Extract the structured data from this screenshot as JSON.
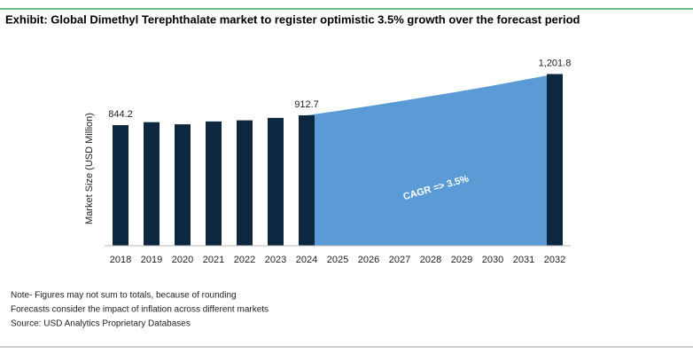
{
  "chart_data": {
    "type": "bar",
    "title": "Exhibit: Global Dimethyl Terephthalate market to register optimistic 3.5% growth over the forecast period",
    "y_label": "Market Size (USD Million)",
    "categories": [
      "2018",
      "2019",
      "2020",
      "2021",
      "2022",
      "2023",
      "2024",
      "2025",
      "2026",
      "2027",
      "2028",
      "2029",
      "2030",
      "2031",
      "2032"
    ],
    "series": [
      {
        "type": "bar",
        "color": "#0d2740",
        "values": [
          844.2,
          865,
          850,
          870,
          878,
          895,
          912.7,
          null,
          null,
          null,
          null,
          null,
          null,
          null,
          1201.8
        ],
        "value_labels": [
          "844.2",
          null,
          null,
          null,
          null,
          null,
          "912.7",
          null,
          null,
          null,
          null,
          null,
          null,
          null,
          "1,201.8"
        ]
      },
      {
        "type": "area",
        "color": "#5b9bd5",
        "values": [
          null,
          null,
          null,
          null,
          null,
          null,
          912.7,
          944,
          977,
          1011,
          1047,
          1083,
          1121,
          1161,
          1201.8
        ]
      }
    ],
    "annotation": "CAGR =>  3.5%",
    "ylim": [
      0,
      1720
    ],
    "notes": [
      "Note- Figures may not sum to totals, because of rounding",
      "Forecasts consider the impact of inflation across different markets",
      "Source: USD Analytics Proprietary Databases"
    ]
  }
}
